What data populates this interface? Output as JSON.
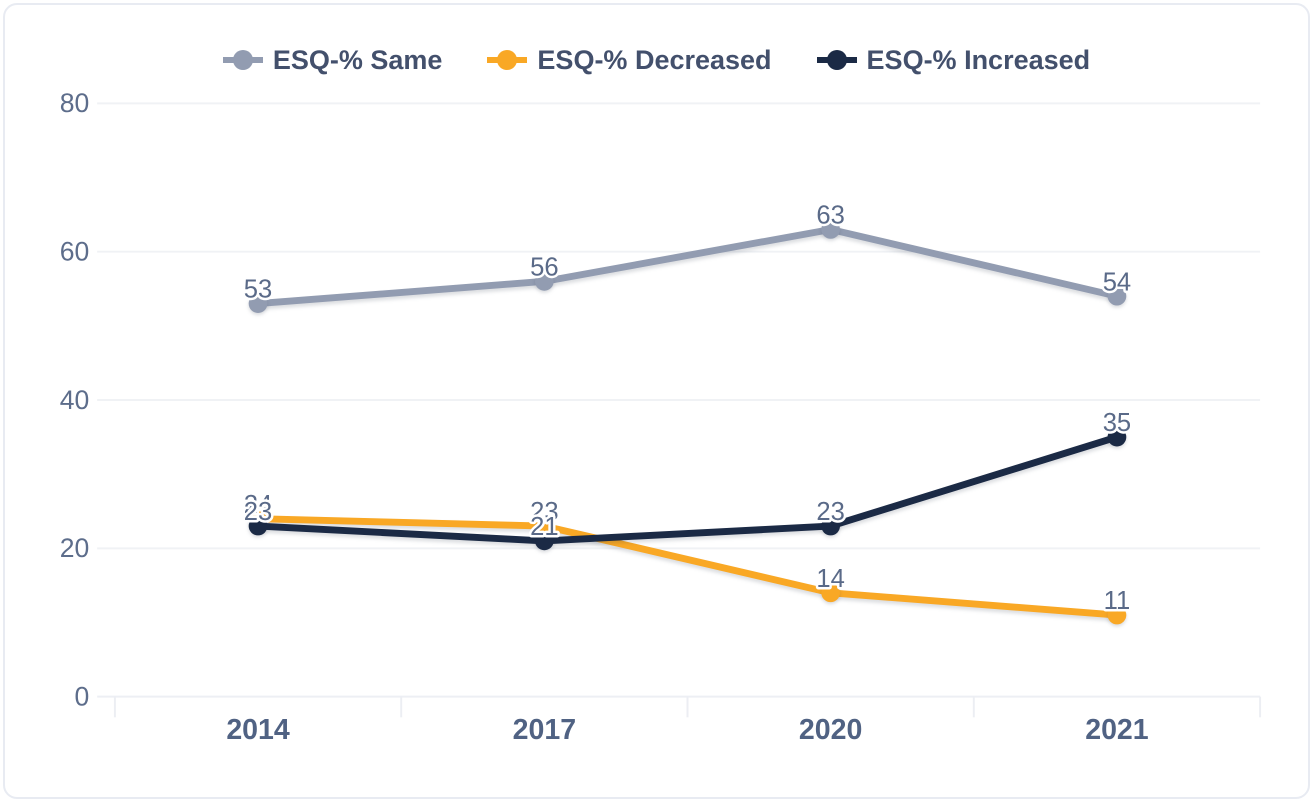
{
  "chart_data": {
    "type": "line",
    "title": "",
    "categories": [
      "2014",
      "2017",
      "2020",
      "2021"
    ],
    "series": [
      {
        "name": "ESQ-% Same",
        "color": "#929cb1",
        "values": [
          53,
          56,
          63,
          54
        ]
      },
      {
        "name": "ESQ-% Decreased",
        "color": "#f9a825",
        "values": [
          24,
          23,
          14,
          11
        ]
      },
      {
        "name": "ESQ-% Increased",
        "color": "#1b2a45",
        "values": [
          23,
          21,
          23,
          35
        ]
      }
    ],
    "xlabel": "",
    "ylabel": "",
    "ylim": [
      0,
      80
    ],
    "yticks": [
      0,
      20,
      40,
      60,
      80
    ],
    "grid": true,
    "legend_position": "top",
    "data_labels": true
  },
  "colors": {
    "series_same": "#929cb1",
    "series_decreased": "#f9a825",
    "series_increased": "#1b2a45",
    "axis_label": "#5d6d8b",
    "x_label": "#506283",
    "legend_text": "#43506c"
  }
}
